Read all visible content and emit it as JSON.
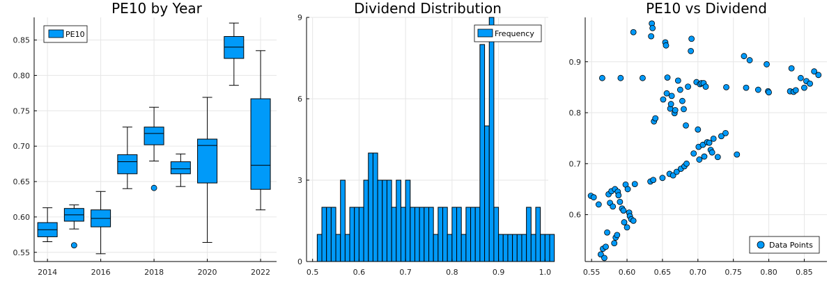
{
  "colors": {
    "accent": "#009AF9",
    "stroke": "#000000",
    "grid": "#E6E6E6"
  },
  "chart_data": [
    {
      "type": "box",
      "title": "PE10 by Year",
      "xlabel": "",
      "ylabel": "",
      "xticks": [
        "2014",
        "2016",
        "2018",
        "2020",
        "2022"
      ],
      "yticks": [
        "0.55",
        "0.60",
        "0.65",
        "0.70",
        "0.75",
        "0.80",
        "0.85"
      ],
      "xlim": [
        2013.5,
        2022.6
      ],
      "ylim": [
        0.537,
        0.882
      ],
      "legend": {
        "position": "top-left",
        "labels": [
          "PE10"
        ]
      },
      "series": [
        {
          "name": "PE10",
          "boxes": [
            {
              "x": 2014,
              "min": 0.565,
              "q1": 0.572,
              "median": 0.582,
              "q3": 0.592,
              "max": 0.613,
              "outliers": []
            },
            {
              "x": 2015,
              "min": 0.583,
              "q1": 0.594,
              "median": 0.603,
              "q3": 0.612,
              "max": 0.617,
              "outliers": [
                0.56
              ]
            },
            {
              "x": 2016,
              "min": 0.548,
              "q1": 0.586,
              "median": 0.598,
              "q3": 0.61,
              "max": 0.636,
              "outliers": []
            },
            {
              "x": 2017,
              "min": 0.64,
              "q1": 0.661,
              "median": 0.678,
              "q3": 0.688,
              "max": 0.727,
              "outliers": []
            },
            {
              "x": 2018,
              "min": 0.679,
              "q1": 0.702,
              "median": 0.718,
              "q3": 0.727,
              "max": 0.755,
              "outliers": [
                0.641
              ]
            },
            {
              "x": 2019,
              "min": 0.643,
              "q1": 0.661,
              "median": 0.668,
              "q3": 0.678,
              "max": 0.689,
              "outliers": []
            },
            {
              "x": 2020,
              "min": 0.564,
              "q1": 0.648,
              "median": 0.701,
              "q3": 0.71,
              "max": 0.769,
              "outliers": []
            },
            {
              "x": 2021,
              "min": 0.786,
              "q1": 0.824,
              "median": 0.84,
              "q3": 0.855,
              "max": 0.874,
              "outliers": []
            },
            {
              "x": 2022,
              "min": 0.61,
              "q1": 0.639,
              "median": 0.673,
              "q3": 0.767,
              "max": 0.835,
              "outliers": []
            }
          ]
        }
      ]
    },
    {
      "type": "histogram",
      "title": "Dividend Distribution",
      "xlabel": "",
      "ylabel": "",
      "xticks": [
        "0.5",
        "0.6",
        "0.7",
        "0.8",
        "0.9",
        "1.0"
      ],
      "yticks": [
        "0",
        "3",
        "6",
        "9"
      ],
      "xlim": [
        0.487,
        1.007
      ],
      "ylim": [
        0,
        9
      ],
      "bin_start": 0.51,
      "bin_width": 0.01,
      "legend": {
        "position": "top-right",
        "labels": [
          "Frequency"
        ]
      },
      "series": [
        {
          "name": "Frequency",
          "counts": [
            1,
            2,
            2,
            2,
            1,
            3,
            1,
            2,
            2,
            2,
            3,
            4,
            4,
            3,
            3,
            3,
            2,
            3,
            2,
            3,
            2,
            2,
            2,
            2,
            2,
            1,
            2,
            2,
            1,
            2,
            2,
            1,
            2,
            2,
            2,
            8,
            5,
            9,
            2,
            1,
            1,
            1,
            1,
            1,
            1,
            2,
            1,
            2,
            1,
            1,
            1
          ]
        }
      ]
    },
    {
      "type": "scatter",
      "title": "PE10 vs Dividend",
      "xlabel": "",
      "ylabel": "",
      "xticks": [
        "0.55",
        "0.60",
        "0.65",
        "0.70",
        "0.75",
        "0.80",
        "0.85"
      ],
      "yticks": [
        "0.6",
        "0.7",
        "0.8",
        "0.9"
      ],
      "xlim": [
        0.541,
        0.882
      ],
      "ylim": [
        0.508,
        0.987
      ],
      "legend": {
        "position": "bottom-right",
        "labels": [
          "Data Points"
        ]
      },
      "series": [
        {
          "name": "Data Points",
          "points": [
            [
              0.549,
              0.637
            ],
            [
              0.553,
              0.634
            ],
            [
              0.56,
              0.62
            ],
            [
              0.563,
              0.522
            ],
            [
              0.566,
              0.533
            ],
            [
              0.568,
              0.515
            ],
            [
              0.57,
              0.537
            ],
            [
              0.572,
              0.565
            ],
            [
              0.574,
              0.64
            ],
            [
              0.576,
              0.623
            ],
            [
              0.578,
              0.646
            ],
            [
              0.58,
              0.616
            ],
            [
              0.582,
              0.544
            ],
            [
              0.583,
              0.65
            ],
            [
              0.584,
              0.555
            ],
            [
              0.586,
              0.56
            ],
            [
              0.587,
              0.645
            ],
            [
              0.588,
              0.638
            ],
            [
              0.59,
              0.625
            ],
            [
              0.593,
              0.612
            ],
            [
              0.595,
              0.608
            ],
            [
              0.596,
              0.585
            ],
            [
              0.598,
              0.659
            ],
            [
              0.6,
              0.575
            ],
            [
              0.601,
              0.65
            ],
            [
              0.603,
              0.604
            ],
            [
              0.604,
              0.597
            ],
            [
              0.606,
              0.591
            ],
            [
              0.609,
              0.588
            ],
            [
              0.611,
              0.66
            ],
            [
              0.565,
              0.868
            ],
            [
              0.591,
              0.868
            ],
            [
              0.609,
              0.958
            ],
            [
              0.622,
              0.868
            ],
            [
              0.633,
              0.665
            ],
            [
              0.637,
              0.668
            ],
            [
              0.634,
              0.95
            ],
            [
              0.635,
              0.975
            ],
            [
              0.636,
              0.966
            ],
            [
              0.638,
              0.783
            ],
            [
              0.64,
              0.789
            ],
            [
              0.65,
              0.672
            ],
            [
              0.651,
              0.826
            ],
            [
              0.654,
              0.938
            ],
            [
              0.655,
              0.932
            ],
            [
              0.656,
              0.838
            ],
            [
              0.657,
              0.869
            ],
            [
              0.66,
              0.68
            ],
            [
              0.661,
              0.808
            ],
            [
              0.662,
              0.817
            ],
            [
              0.663,
              0.833
            ],
            [
              0.665,
              0.677
            ],
            [
              0.667,
              0.799
            ],
            [
              0.668,
              0.805
            ],
            [
              0.67,
              0.684
            ],
            [
              0.672,
              0.863
            ],
            [
              0.675,
              0.845
            ],
            [
              0.676,
              0.69
            ],
            [
              0.678,
              0.823
            ],
            [
              0.68,
              0.807
            ],
            [
              0.681,
              0.695
            ],
            [
              0.683,
              0.775
            ],
            [
              0.684,
              0.7
            ],
            [
              0.686,
              0.851
            ],
            [
              0.69,
              0.921
            ],
            [
              0.691,
              0.945
            ],
            [
              0.694,
              0.72
            ],
            [
              0.698,
              0.86
            ],
            [
              0.7,
              0.767
            ],
            [
              0.701,
              0.733
            ],
            [
              0.702,
              0.708
            ],
            [
              0.703,
              0.856
            ],
            [
              0.705,
              0.858
            ],
            [
              0.707,
              0.737
            ],
            [
              0.708,
              0.858
            ],
            [
              0.709,
              0.714
            ],
            [
              0.711,
              0.851
            ],
            [
              0.713,
              0.742
            ],
            [
              0.716,
              0.741
            ],
            [
              0.718,
              0.727
            ],
            [
              0.72,
              0.722
            ],
            [
              0.722,
              0.749
            ],
            [
              0.728,
              0.713
            ],
            [
              0.733,
              0.754
            ],
            [
              0.739,
              0.76
            ],
            [
              0.74,
              0.85
            ],
            [
              0.755,
              0.718
            ],
            [
              0.765,
              0.911
            ],
            [
              0.768,
              0.849
            ],
            [
              0.773,
              0.903
            ],
            [
              0.785,
              0.845
            ],
            [
              0.797,
              0.895
            ],
            [
              0.799,
              0.842
            ],
            [
              0.8,
              0.84
            ],
            [
              0.83,
              0.842
            ],
            [
              0.832,
              0.887
            ],
            [
              0.835,
              0.841
            ],
            [
              0.838,
              0.844
            ],
            [
              0.845,
              0.868
            ],
            [
              0.85,
              0.849
            ],
            [
              0.853,
              0.862
            ],
            [
              0.858,
              0.857
            ],
            [
              0.864,
              0.881
            ],
            [
              0.87,
              0.874
            ]
          ]
        }
      ]
    }
  ]
}
